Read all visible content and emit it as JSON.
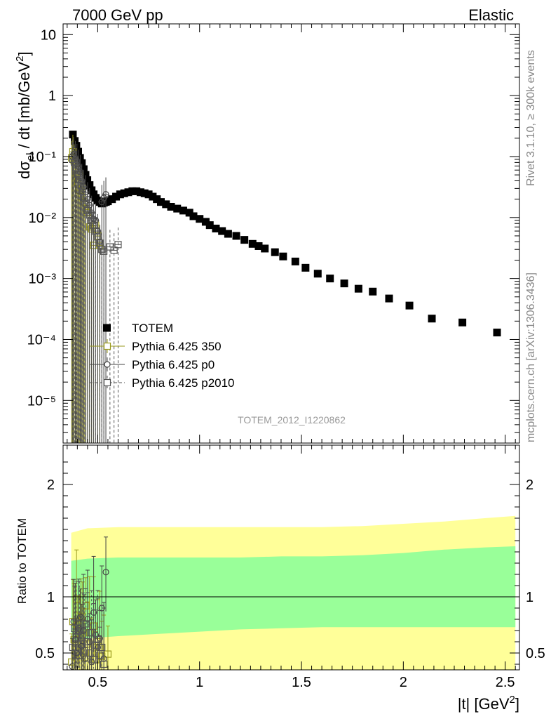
{
  "header": {
    "energy_label": "7000 GeV pp",
    "process_label": "Elastic"
  },
  "side": {
    "rivet_label": "Rivet 3.1.10, ≥ 300k events",
    "mcplots_label": "mcplots.cern.ch [arXiv:1306.3436]"
  },
  "watermark": "TOTEM_2012_I1220862",
  "chart_data": [
    {
      "type": "scatter",
      "panel": "main",
      "ylabel": "dσ_el / dt [mb/GeV²]",
      "xlim": [
        0.33,
        2.57
      ],
      "ylim": [
        2e-06,
        15
      ],
      "yscale": "log",
      "x_ticks": [
        0.5,
        1,
        1.5,
        2,
        2.5
      ],
      "y_tick_labels": [
        "10⁻⁵",
        "10⁻⁴",
        "10⁻³",
        "10⁻²",
        "10⁻¹",
        "1",
        "10"
      ],
      "legend_position": "middle-left",
      "series": [
        {
          "name": "TOTEM",
          "color": "#000000",
          "marker": "filled-square",
          "x": [
            0.378,
            0.387,
            0.395,
            0.404,
            0.413,
            0.422,
            0.431,
            0.44,
            0.449,
            0.46,
            0.47,
            0.48,
            0.49,
            0.5,
            0.51,
            0.52,
            0.53,
            0.54,
            0.55,
            0.57,
            0.59,
            0.61,
            0.63,
            0.65,
            0.67,
            0.69,
            0.71,
            0.73,
            0.75,
            0.77,
            0.79,
            0.81,
            0.835,
            0.86,
            0.89,
            0.92,
            0.95,
            0.97,
            1.0,
            1.03,
            1.05,
            1.08,
            1.11,
            1.14,
            1.18,
            1.22,
            1.26,
            1.29,
            1.32,
            1.37,
            1.41,
            1.47,
            1.52,
            1.58,
            1.64,
            1.71,
            1.78,
            1.85,
            1.93,
            2.03,
            2.14,
            2.29,
            2.46
          ],
          "y": [
            0.23,
            0.18,
            0.15,
            0.12,
            0.095,
            0.078,
            0.062,
            0.05,
            0.041,
            0.034,
            0.028,
            0.024,
            0.021,
            0.019,
            0.018,
            0.017,
            0.0175,
            0.018,
            0.0185,
            0.02,
            0.022,
            0.024,
            0.025,
            0.026,
            0.027,
            0.027,
            0.026,
            0.025,
            0.024,
            0.022,
            0.02,
            0.018,
            0.0165,
            0.015,
            0.014,
            0.013,
            0.012,
            0.0105,
            0.0095,
            0.0085,
            0.0075,
            0.0066,
            0.006,
            0.0054,
            0.005,
            0.0043,
            0.0037,
            0.0034,
            0.0031,
            0.0027,
            0.0023,
            0.0019,
            0.0015,
            0.0012,
            0.001,
            0.00083,
            0.00068,
            0.00061,
            0.00047,
            0.00036,
            0.00022,
            0.00019,
            0.00013
          ]
        },
        {
          "name": "Pythia 6.425 350",
          "color": "#9a9a1e",
          "marker": "open-square",
          "x": [
            0.372,
            0.378,
            0.384,
            0.39,
            0.396,
            0.402,
            0.41,
            0.418,
            0.426,
            0.434,
            0.442,
            0.45,
            0.46,
            0.47,
            0.48,
            0.49,
            0.5,
            0.51
          ],
          "y": [
            0.095,
            0.12,
            0.085,
            0.07,
            0.05,
            0.038,
            0.028,
            0.022,
            0.03,
            0.018,
            0.014,
            0.012,
            0.007,
            0.0065,
            0.0035,
            0.0075,
            0.005,
            0.0035
          ]
        },
        {
          "name": "Pythia 6.425 p0",
          "color": "#444444",
          "marker": "open-circle",
          "x": [
            0.375,
            0.382,
            0.39,
            0.398,
            0.406,
            0.414,
            0.422,
            0.43,
            0.44,
            0.45,
            0.46,
            0.47,
            0.48,
            0.49,
            0.5,
            0.51,
            0.52,
            0.53,
            0.54
          ],
          "y": [
            0.1,
            0.11,
            0.095,
            0.085,
            0.068,
            0.056,
            0.04,
            0.032,
            0.026,
            0.02,
            0.016,
            0.012,
            0.0095,
            0.009,
            0.006,
            0.004,
            0.018,
            0.021,
            0.024
          ]
        },
        {
          "name": "Pythia 6.425 p2010",
          "color": "#555555",
          "marker": "open-square-dashed",
          "x": [
            0.378,
            0.386,
            0.394,
            0.402,
            0.41,
            0.418,
            0.426,
            0.434,
            0.442,
            0.45,
            0.46,
            0.47,
            0.48,
            0.49,
            0.5,
            0.51,
            0.52,
            0.53,
            0.56,
            0.58,
            0.6
          ],
          "y": [
            0.09,
            0.08,
            0.065,
            0.052,
            0.042,
            0.034,
            0.027,
            0.021,
            0.017,
            0.013,
            0.011,
            0.009,
            0.0075,
            0.006,
            0.0048,
            0.0038,
            0.003,
            0.0028,
            0.0033,
            0.0029,
            0.0036
          ]
        }
      ]
    },
    {
      "type": "scatter",
      "panel": "ratio",
      "xlabel": "|t| [GeV²]",
      "ylabel": "Ratio to TOTEM",
      "xlim": [
        0.33,
        2.57
      ],
      "ylim": [
        0.35,
        2.35
      ],
      "x_ticks": [
        0.5,
        1,
        1.5,
        2,
        2.5
      ],
      "y_ticks": [
        0.5,
        1,
        2
      ],
      "x_tick_labels": [
        "0.5",
        "1",
        "1.5",
        "2",
        "2.5"
      ],
      "y_tick_labels": [
        "0.5",
        "1",
        "2"
      ],
      "reference_line": 1,
      "band_colors": {
        "outer": "#ffff99",
        "inner": "#99ff99"
      },
      "bands": {
        "x": [
          0.37,
          0.45,
          0.6,
          0.8,
          1.0,
          1.2,
          1.4,
          1.6,
          1.8,
          2.0,
          2.2,
          2.4,
          2.55
        ],
        "outer_low": [
          0.35,
          0.35,
          0.35,
          0.35,
          0.35,
          0.35,
          0.35,
          0.35,
          0.35,
          0.35,
          0.35,
          0.35,
          0.35
        ],
        "outer_high": [
          1.57,
          1.61,
          1.62,
          1.62,
          1.62,
          1.62,
          1.62,
          1.62,
          1.63,
          1.65,
          1.67,
          1.7,
          1.72
        ],
        "inner_low": [
          0.61,
          0.63,
          0.65,
          0.67,
          0.69,
          0.71,
          0.72,
          0.73,
          0.73,
          0.73,
          0.73,
          0.73,
          0.73
        ],
        "inner_high": [
          1.32,
          1.34,
          1.35,
          1.35,
          1.35,
          1.35,
          1.36,
          1.36,
          1.37,
          1.39,
          1.42,
          1.44,
          1.45
        ]
      },
      "series": [
        {
          "name": "Pythia 6.425 350",
          "color": "#9a9a1e",
          "marker": "open-square",
          "x": [
            0.372,
            0.378,
            0.384,
            0.39,
            0.396,
            0.402,
            0.41,
            0.418,
            0.426,
            0.434,
            0.442,
            0.45,
            0.46,
            0.47,
            0.48,
            0.49,
            0.5,
            0.51,
            0.52,
            0.53,
            0.55
          ],
          "y": [
            0.42,
            0.78,
            0.62,
            0.55,
            0.98,
            0.75,
            0.48,
            0.66,
            0.82,
            0.46,
            0.92,
            0.58,
            0.68,
            0.5,
            0.74,
            0.44,
            0.6,
            0.55,
            0.47,
            0.4,
            0.49
          ]
        },
        {
          "name": "Pythia 6.425 p0",
          "color": "#444444",
          "marker": "open-circle",
          "x": [
            0.375,
            0.382,
            0.39,
            0.398,
            0.406,
            0.414,
            0.422,
            0.43,
            0.44,
            0.45,
            0.46,
            0.47,
            0.48,
            0.49,
            0.5,
            0.51,
            0.52,
            0.53,
            0.54
          ],
          "y": [
            0.38,
            0.78,
            0.62,
            0.5,
            0.72,
            0.82,
            0.56,
            0.7,
            0.45,
            0.8,
            0.6,
            0.42,
            0.86,
            0.66,
            0.55,
            0.63,
            0.9,
            0.45,
            1.22
          ]
        },
        {
          "name": "Pythia 6.425 p2010",
          "color": "#555555",
          "marker": "open-square-dashed",
          "x": [
            0.378,
            0.386,
            0.394,
            0.402,
            0.41,
            0.418,
            0.426,
            0.434,
            0.442,
            0.45,
            0.46,
            0.47,
            0.48,
            0.49,
            0.5,
            0.51,
            0.52,
            0.53
          ],
          "y": [
            0.55,
            0.72,
            0.64,
            0.48,
            0.7,
            0.58,
            0.66,
            0.52,
            0.76,
            0.6,
            0.5,
            0.68,
            0.44,
            0.57,
            0.62,
            0.48,
            0.55,
            0.4
          ]
        }
      ]
    }
  ]
}
